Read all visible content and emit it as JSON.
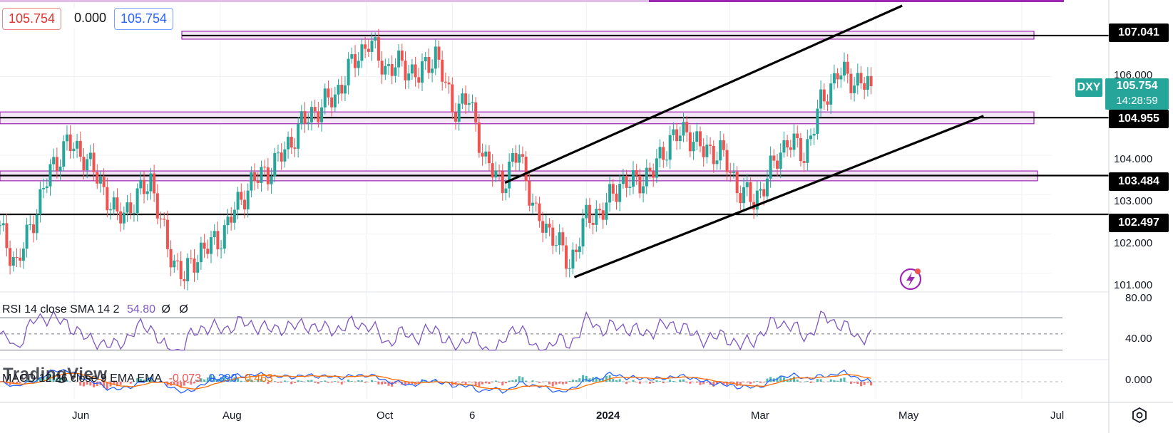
{
  "header": {
    "bid": "105.754",
    "spread": "0.000",
    "ask": "105.754"
  },
  "symbol": {
    "ticker": "DXY",
    "last": "105.754",
    "countdown": "14:28:59"
  },
  "price_axis": {
    "ticks": [
      "106.000",
      "104.000",
      "103.000",
      "102.000",
      "101.000"
    ],
    "level_tags": [
      "107.041",
      "104.955",
      "103.484",
      "102.497"
    ]
  },
  "time_axis": {
    "ticks": [
      "Jun",
      "Aug",
      "Oct",
      "6",
      "2024",
      "Mar",
      "May",
      "Jul"
    ]
  },
  "rsi": {
    "label": "RSI 14 close SMA 14 2",
    "value": "54.80",
    "extra1": "Ø",
    "extra2": "Ø",
    "ticks": [
      "80.00",
      "40.00"
    ]
  },
  "macd": {
    "label": "MACD 12 26 close 9 EMA EMA",
    "hist": "-0.073",
    "macd": "0.390",
    "signal": "0.463",
    "tick": "0.000"
  },
  "logo": "TradingView",
  "colors": {
    "up": "#26a69a",
    "down": "#ef5350",
    "zone": "#9c27b0",
    "rsi": "#7e57c2",
    "macd": "#2962ff",
    "signal": "#ff6d00",
    "tag_dxy": "#26a69a"
  },
  "chart_data": {
    "type": "candlestick",
    "symbol": "DXY",
    "price_range": [
      100.85,
      107.8
    ],
    "horizontal_levels": [
      107.041,
      104.955,
      103.484,
      102.497
    ],
    "zones": [
      [
        106.95,
        107.15
      ],
      [
        104.8,
        105.1
      ],
      [
        103.35,
        103.6
      ]
    ],
    "channel": {
      "upper": [
        [
          "2023-11-28",
          103.3
        ],
        [
          "2024-05-12",
          107.8
        ]
      ],
      "lower": [
        [
          "2023-12-27",
          100.9
        ],
        [
          "2024-06-15",
          105.0
        ]
      ]
    },
    "series": [
      {
        "name": "DXY",
        "points": [
          [
            "2023-05-01",
            102.1
          ],
          [
            "2023-05-08",
            101.2
          ],
          [
            "2023-05-15",
            102.4
          ],
          [
            "2023-05-22",
            103.6
          ],
          [
            "2023-05-29",
            104.3
          ],
          [
            "2023-06-05",
            104.0
          ],
          [
            "2023-06-12",
            103.3
          ],
          [
            "2023-06-19",
            102.4
          ],
          [
            "2023-06-26",
            102.8
          ],
          [
            "2023-07-03",
            103.4
          ],
          [
            "2023-07-10",
            101.6
          ],
          [
            "2023-07-17",
            100.9
          ],
          [
            "2023-07-24",
            101.6
          ],
          [
            "2023-07-31",
            101.8
          ],
          [
            "2023-08-07",
            102.6
          ],
          [
            "2023-08-14",
            103.3
          ],
          [
            "2023-08-21",
            103.6
          ],
          [
            "2023-08-28",
            104.1
          ],
          [
            "2023-09-04",
            104.8
          ],
          [
            "2023-09-11",
            105.2
          ],
          [
            "2023-09-18",
            105.5
          ],
          [
            "2023-09-25",
            106.3
          ],
          [
            "2023-10-02",
            106.9
          ],
          [
            "2023-10-09",
            106.2
          ],
          [
            "2023-10-16",
            106.3
          ],
          [
            "2023-10-23",
            106.0
          ],
          [
            "2023-10-30",
            106.6
          ],
          [
            "2023-11-06",
            105.2
          ],
          [
            "2023-11-13",
            105.4
          ],
          [
            "2023-11-20",
            103.8
          ],
          [
            "2023-11-27",
            103.3
          ],
          [
            "2023-12-04",
            104.1
          ],
          [
            "2023-12-11",
            102.4
          ],
          [
            "2023-12-18",
            102.0
          ],
          [
            "2023-12-25",
            101.2
          ],
          [
            "2024-01-01",
            102.4
          ],
          [
            "2024-01-08",
            102.6
          ],
          [
            "2024-01-15",
            103.3
          ],
          [
            "2024-01-22",
            103.3
          ],
          [
            "2024-01-29",
            103.6
          ],
          [
            "2024-02-05",
            104.4
          ],
          [
            "2024-02-12",
            104.6
          ],
          [
            "2024-02-19",
            104.1
          ],
          [
            "2024-02-26",
            104.1
          ],
          [
            "2024-03-04",
            103.2
          ],
          [
            "2024-03-11",
            102.8
          ],
          [
            "2024-03-18",
            103.6
          ],
          [
            "2024-03-25",
            104.4
          ],
          [
            "2024-04-01",
            104.0
          ],
          [
            "2024-04-08",
            105.3
          ],
          [
            "2024-04-15",
            106.1
          ],
          [
            "2024-04-22",
            105.9
          ],
          [
            "2024-04-29",
            105.754
          ]
        ]
      }
    ],
    "rsi": {
      "ylim": [
        20,
        100
      ],
      "levels": [
        70,
        50,
        30
      ],
      "last": 54.8
    },
    "macd": {
      "macd": 0.39,
      "signal": 0.463,
      "histogram": -0.073
    }
  }
}
